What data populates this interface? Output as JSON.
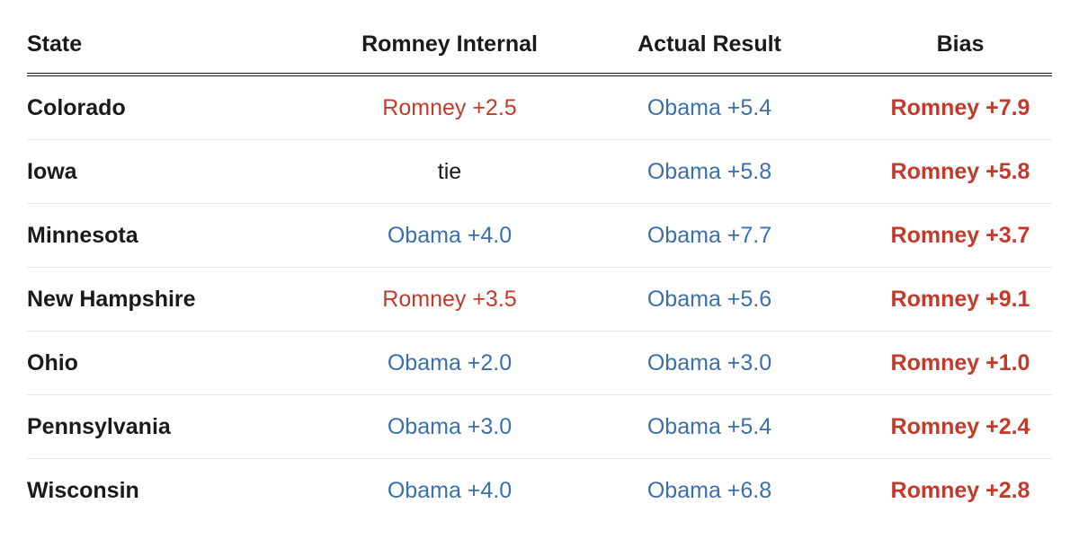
{
  "colors": {
    "romney_red": "#c5392a",
    "obama_blue": "#3a6fad",
    "text_dark": "#1a1a1a",
    "header_rule": "#141414",
    "row_separator": "#e4e4e4",
    "background": "#ffffff"
  },
  "table": {
    "columns": [
      {
        "label": "State"
      },
      {
        "label": "Romney Internal"
      },
      {
        "label": "Actual Result"
      },
      {
        "label": "Bias"
      }
    ],
    "rows": [
      {
        "state": "Colorado",
        "romney_internal": {
          "text": "Romney +2.5",
          "party": "romney"
        },
        "actual_result": {
          "text": "Obama +5.4",
          "party": "obama"
        },
        "bias": {
          "text": "Romney +7.9",
          "party": "romney"
        }
      },
      {
        "state": "Iowa",
        "romney_internal": {
          "text": "tie",
          "party": "tie"
        },
        "actual_result": {
          "text": "Obama +5.8",
          "party": "obama"
        },
        "bias": {
          "text": "Romney +5.8",
          "party": "romney"
        }
      },
      {
        "state": "Minnesota",
        "romney_internal": {
          "text": "Obama +4.0",
          "party": "obama"
        },
        "actual_result": {
          "text": "Obama +7.7",
          "party": "obama"
        },
        "bias": {
          "text": "Romney +3.7",
          "party": "romney"
        }
      },
      {
        "state": "New Hampshire",
        "romney_internal": {
          "text": "Romney +3.5",
          "party": "romney"
        },
        "actual_result": {
          "text": "Obama +5.6",
          "party": "obama"
        },
        "bias": {
          "text": "Romney +9.1",
          "party": "romney"
        }
      },
      {
        "state": "Ohio",
        "romney_internal": {
          "text": "Obama +2.0",
          "party": "obama"
        },
        "actual_result": {
          "text": "Obama +3.0",
          "party": "obama"
        },
        "bias": {
          "text": "Romney +1.0",
          "party": "romney"
        }
      },
      {
        "state": "Pennsylvania",
        "romney_internal": {
          "text": "Obama +3.0",
          "party": "obama"
        },
        "actual_result": {
          "text": "Obama +5.4",
          "party": "obama"
        },
        "bias": {
          "text": "Romney +2.4",
          "party": "romney"
        }
      },
      {
        "state": "Wisconsin",
        "romney_internal": {
          "text": "Obama +4.0",
          "party": "obama"
        },
        "actual_result": {
          "text": "Obama +6.8",
          "party": "obama"
        },
        "bias": {
          "text": "Romney +2.8",
          "party": "romney"
        }
      }
    ]
  },
  "chart_data": {
    "type": "table",
    "title": "",
    "columns": [
      "State",
      "Romney Internal",
      "Actual Result",
      "Bias"
    ],
    "rows": [
      [
        "Colorado",
        "Romney +2.5",
        "Obama +5.4",
        "Romney +7.9"
      ],
      [
        "Iowa",
        "tie",
        "Obama +5.8",
        "Romney +5.8"
      ],
      [
        "Minnesota",
        "Obama +4.0",
        "Obama +7.7",
        "Romney +3.7"
      ],
      [
        "New Hampshire",
        "Romney +3.5",
        "Obama +5.6",
        "Romney +9.1"
      ],
      [
        "Ohio",
        "Obama +2.0",
        "Obama +3.0",
        "Romney +1.0"
      ],
      [
        "Pennsylvania",
        "Obama +3.0",
        "Obama +5.4",
        "Romney +2.4"
      ],
      [
        "Wisconsin",
        "Obama +4.0",
        "Obama +6.8",
        "Romney +2.8"
      ]
    ],
    "numeric_margins": {
      "note": "positive = Obama lead, negative = Romney lead, 0 = tie; bias is Romney-direction magnitude",
      "romney_internal": [
        -2.5,
        0,
        4.0,
        -3.5,
        2.0,
        3.0,
        4.0
      ],
      "actual_result": [
        5.4,
        5.8,
        7.7,
        5.6,
        3.0,
        5.4,
        6.8
      ],
      "bias_romney": [
        7.9,
        5.8,
        3.7,
        9.1,
        1.0,
        2.4,
        2.8
      ]
    },
    "layout": {
      "grid": "horizontal row separators",
      "header_rule": "double black line"
    }
  }
}
